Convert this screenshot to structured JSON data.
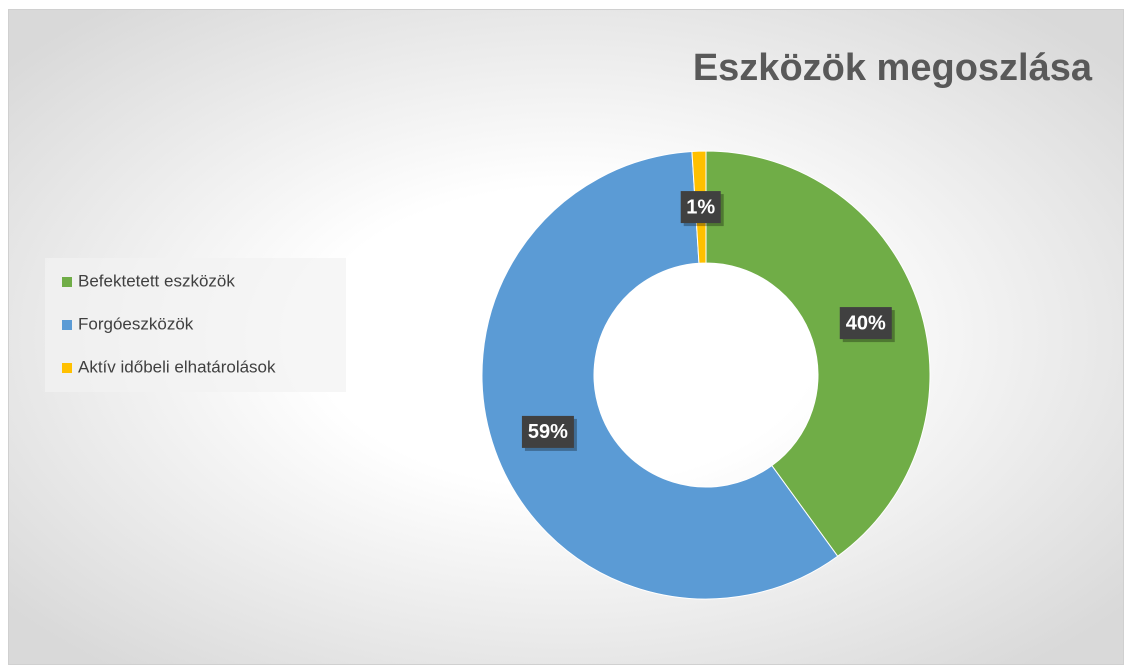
{
  "chart_data": {
    "type": "donut",
    "title": "Eszközök megoszlása",
    "categories": [
      "Befektetett eszközök",
      "Forgóeszközök",
      "Aktív időbeli elhatárolások"
    ],
    "values": [
      40,
      59,
      1
    ],
    "value_labels": [
      "40%",
      "59%",
      "1%"
    ],
    "colors": [
      "#70ad47",
      "#5b9bd5",
      "#ffc000"
    ],
    "legend": "left"
  }
}
